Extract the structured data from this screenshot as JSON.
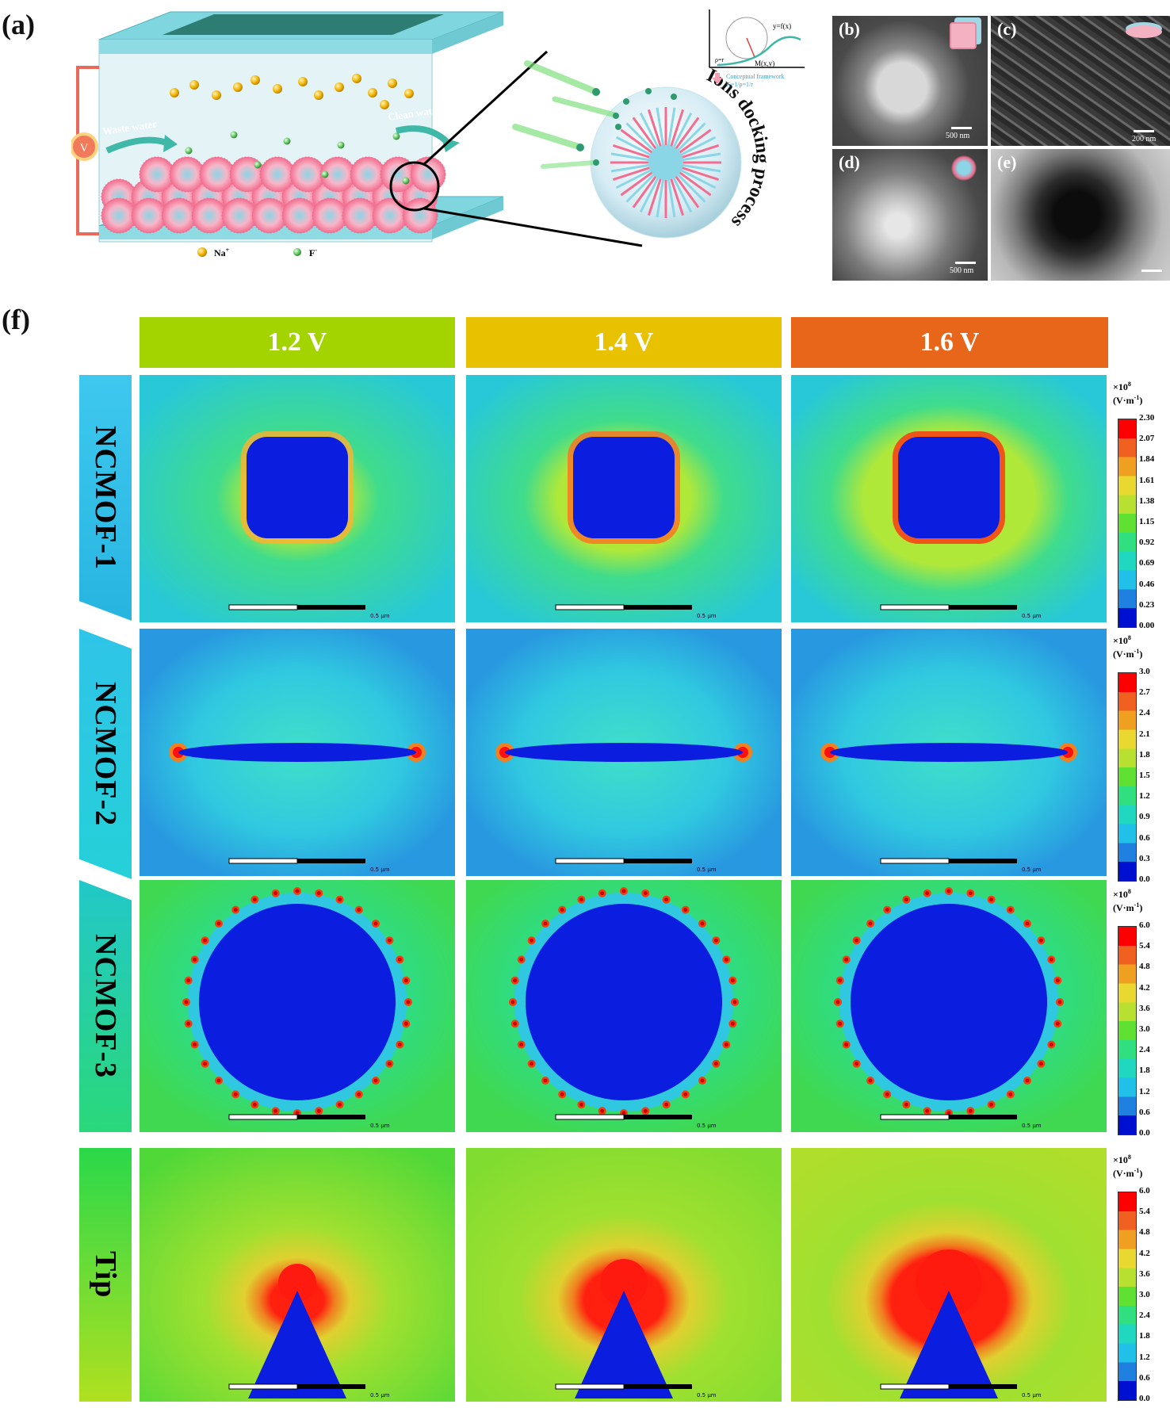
{
  "panel_a": {
    "letter": "(a)",
    "power_symbol": "V",
    "waste_water": "Waste water",
    "clean_water": "Clean water",
    "legend_na": "Na",
    "legend_na_sup": "+",
    "legend_f": "F",
    "legend_f_sup": "-",
    "ions_docking": "Ions docking process",
    "framework_curve": "y=f(x)",
    "framework_point": "M(x,y)",
    "framework_rho": "ρ=r",
    "framework_label": "Conceptual framework",
    "framework_formula": "K=1/ρ=1/r"
  },
  "sem_panels": [
    {
      "letter": "(b)",
      "scale": "500 nm"
    },
    {
      "letter": "(c)",
      "scale": "200 nm"
    },
    {
      "letter": "(d)",
      "scale": "500 nm"
    },
    {
      "letter": "(e)",
      "scale": ""
    }
  ],
  "panel_f": {
    "letter": "(f)",
    "voltages": [
      {
        "label": "1.2 V",
        "color": "#a4d400"
      },
      {
        "label": "1.4 V",
        "color": "#e8c200"
      },
      {
        "label": "1.6 V",
        "color": "#e8661a"
      }
    ],
    "rows": [
      {
        "label": "NCMOF-1",
        "shape": "square",
        "cb_ticks": [
          "2.30",
          "2.07",
          "1.84",
          "1.61",
          "1.38",
          "1.15",
          "0.92",
          "0.69",
          "0.46",
          "0.23",
          "0.00"
        ]
      },
      {
        "label": "NCMOF-2",
        "shape": "ellipse",
        "cb_ticks": [
          "3.0",
          "2.7",
          "2.4",
          "2.1",
          "1.8",
          "1.5",
          "1.2",
          "0.9",
          "0.6",
          "0.3",
          "0.0"
        ]
      },
      {
        "label": "NCMOF-3",
        "shape": "sphere",
        "cb_ticks": [
          "6.0",
          "5.4",
          "4.8",
          "4.2",
          "3.6",
          "3.0",
          "2.4",
          "1.8",
          "1.2",
          "0.6",
          "0.0"
        ]
      },
      {
        "label": "Tip",
        "shape": "tip",
        "cb_ticks": [
          "6.0",
          "5.4",
          "4.8",
          "4.2",
          "3.6",
          "3.0",
          "2.4",
          "1.8",
          "1.2",
          "0.6",
          "0.0"
        ]
      }
    ],
    "colorbar_exp": "×10",
    "colorbar_exp_sup": "8",
    "colorbar_unit": "(V·m",
    "colorbar_unit_sup": "-1",
    "colorbar_unit_end": ")",
    "scalebar_label": "0.5 μm"
  }
}
